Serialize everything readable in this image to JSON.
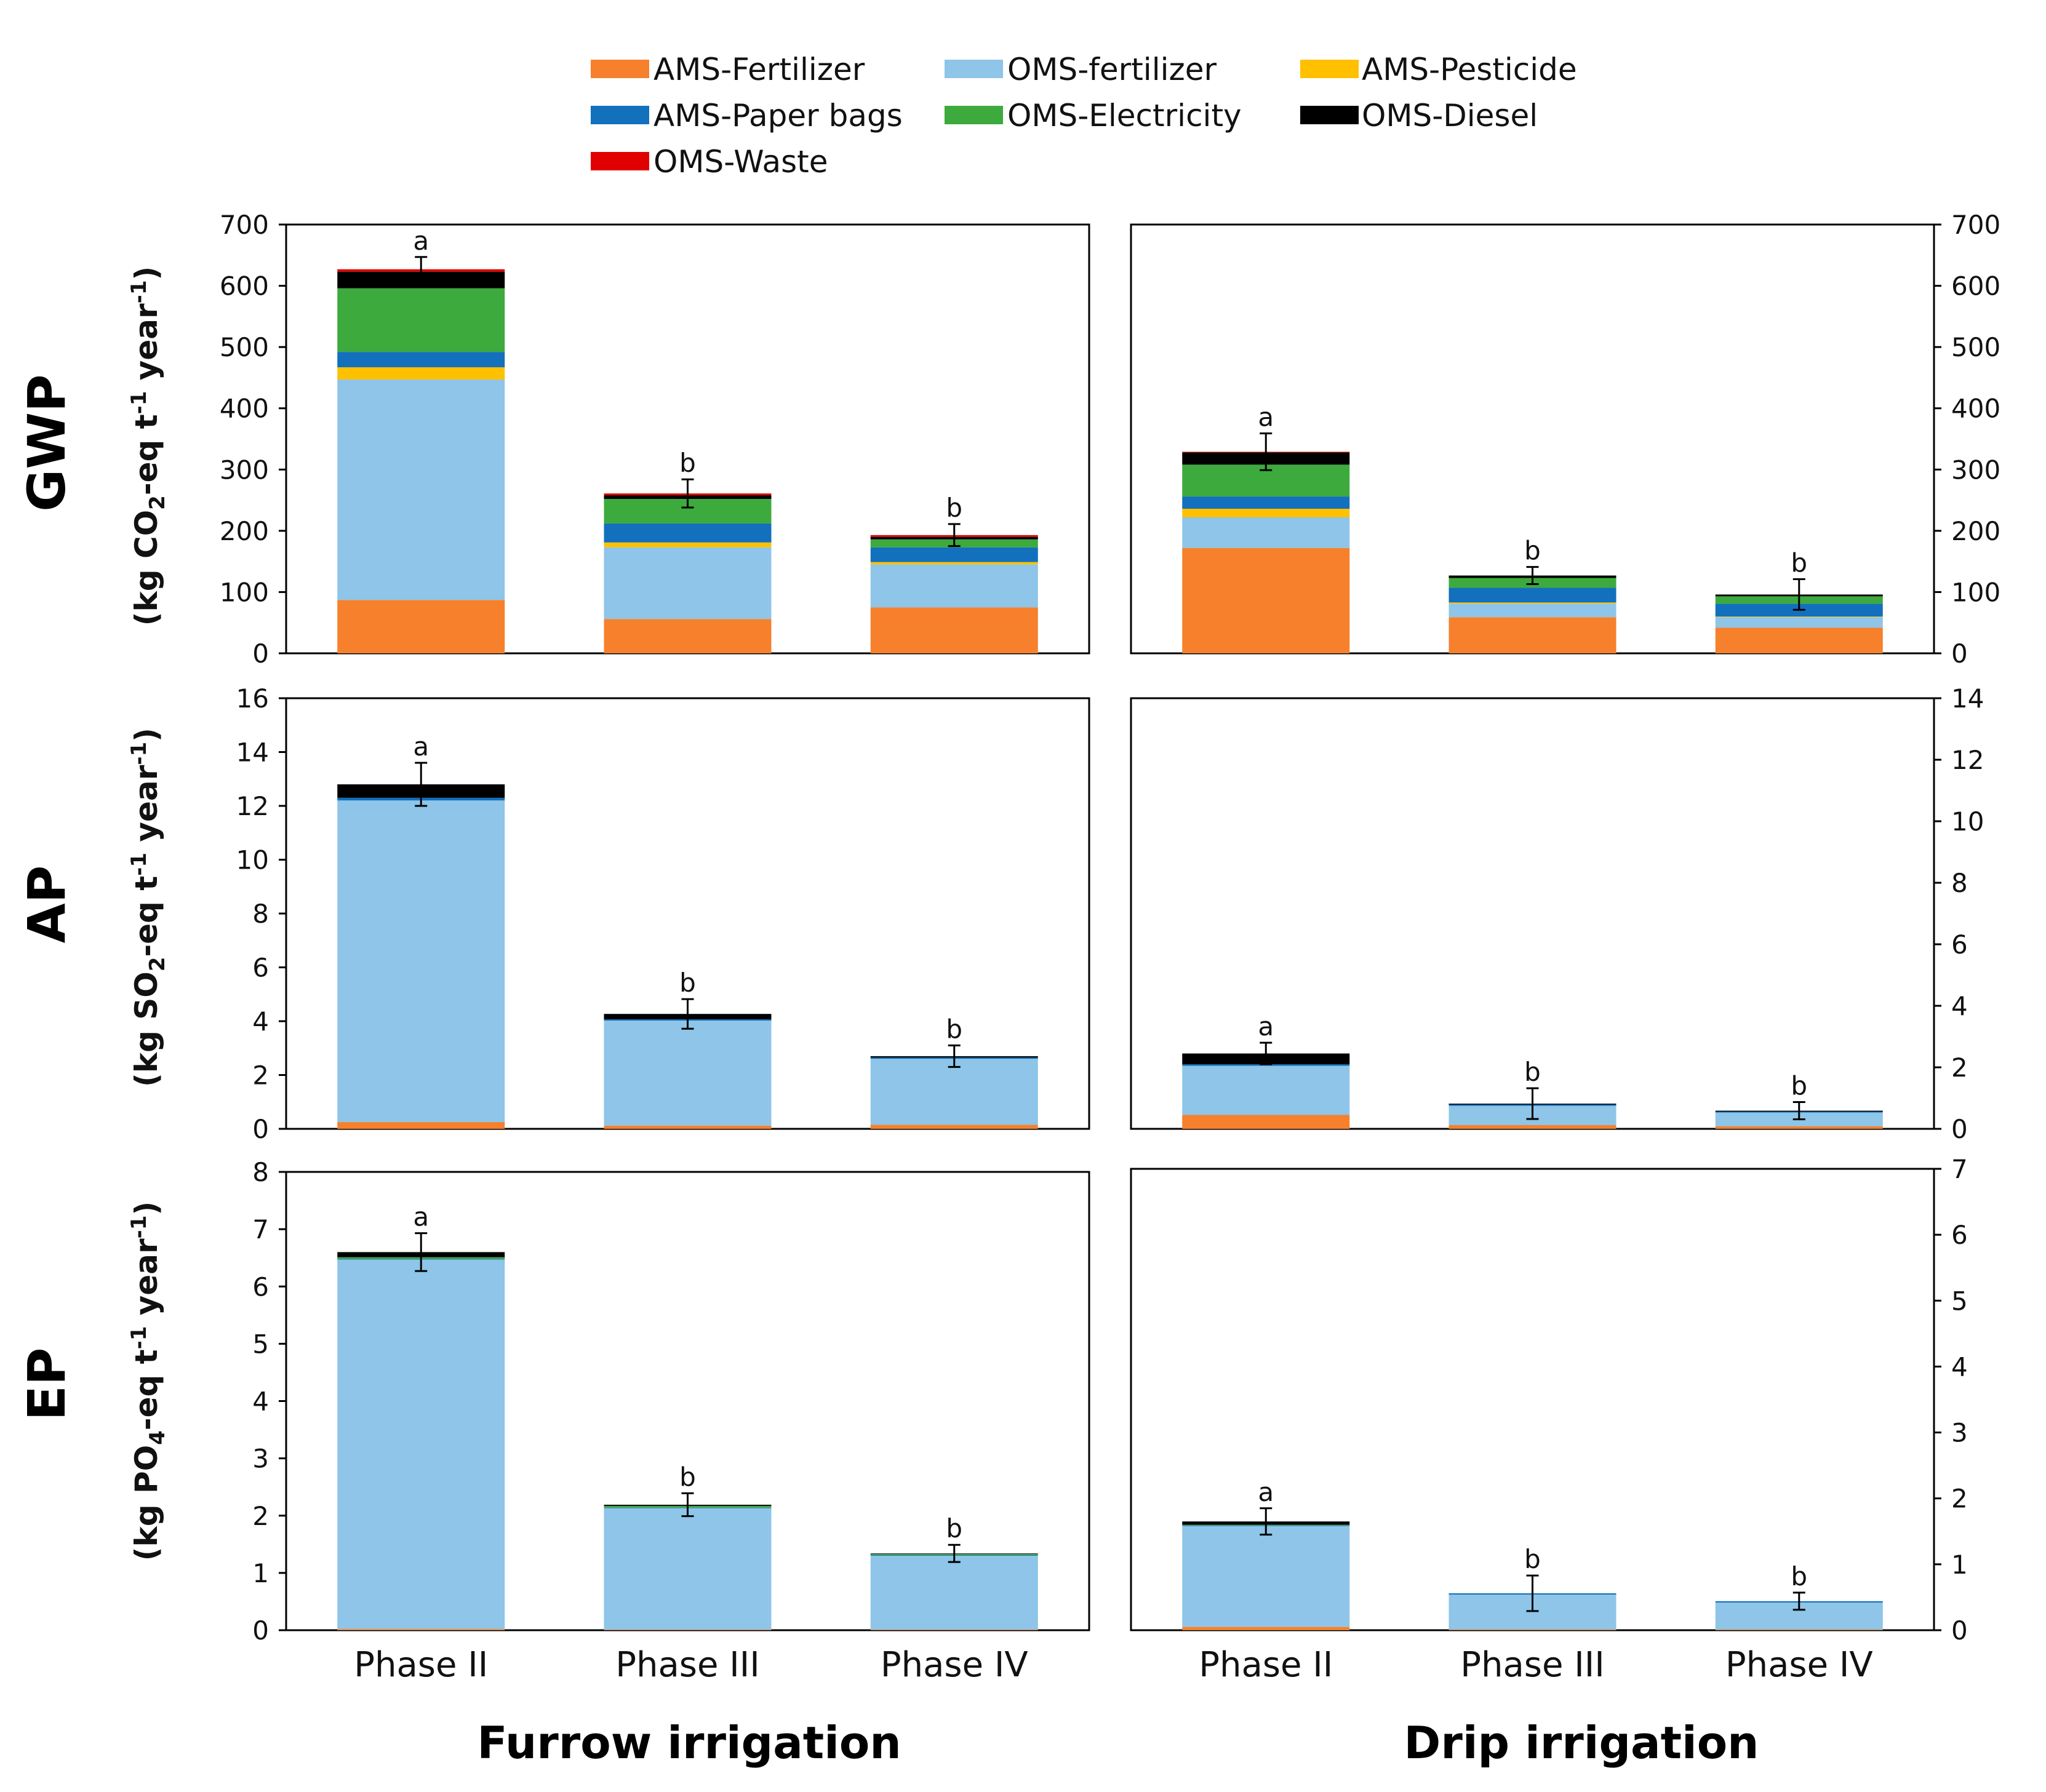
{
  "chart_data": {
    "type": "bar",
    "stacked": true,
    "categories": [
      "Phase II",
      "Phase III",
      "Phase IV"
    ],
    "legend": [
      {
        "name": "AMS-Fertilizer",
        "color": "#F6802B"
      },
      {
        "name": "OMS-fertilizer",
        "color": "#8EC5E8"
      },
      {
        "name": "AMS-Pesticide",
        "color": "#FFC000"
      },
      {
        "name": "AMS-Paper bags",
        "color": "#1270BD"
      },
      {
        "name": "OMS-Electricity",
        "color": "#3DAA3D"
      },
      {
        "name": "OMS-Diesel",
        "color": "#000000"
      },
      {
        "name": "OMS-Waste",
        "color": "#E00000"
      }
    ],
    "group_titles": {
      "left": "Furrow irrigation",
      "right": "Drip irrigation"
    },
    "panels": [
      {
        "row": "GWP",
        "group": "left",
        "ylabel": "(kg CO2-eq t-1 year-1)",
        "ylim": [
          0,
          700
        ],
        "yticks": [
          0,
          100,
          200,
          300,
          400,
          500,
          600,
          700
        ],
        "series": [
          {
            "name": "AMS-Fertilizer",
            "values": [
              87,
              56,
              75
            ]
          },
          {
            "name": "OMS-fertilizer",
            "values": [
              360,
              117,
              70
            ]
          },
          {
            "name": "AMS-Pesticide",
            "values": [
              20,
              8,
              4
            ]
          },
          {
            "name": "AMS-Paper bags",
            "values": [
              25,
              31,
              24
            ]
          },
          {
            "name": "OMS-Electricity",
            "values": [
              104,
              40,
              13
            ]
          },
          {
            "name": "OMS-Diesel",
            "values": [
              27,
              6,
              4
            ]
          },
          {
            "name": "OMS-Waste",
            "values": [
              4,
              3,
              3
            ]
          }
        ],
        "errors": [
          20,
          23,
          18
        ],
        "significance": [
          "a",
          "b",
          "b"
        ]
      },
      {
        "row": "GWP",
        "group": "right",
        "ylim": [
          0,
          700
        ],
        "yticks": [
          0,
          100,
          200,
          300,
          400,
          500,
          600,
          700
        ],
        "series": [
          {
            "name": "AMS-Fertilizer",
            "values": [
              172,
              59,
              42
            ]
          },
          {
            "name": "OMS-fertilizer",
            "values": [
              50,
              22,
              17
            ]
          },
          {
            "name": "AMS-Pesticide",
            "values": [
              14,
              2,
              1
            ]
          },
          {
            "name": "AMS-Paper bags",
            "values": [
              20,
              24,
              21
            ]
          },
          {
            "name": "OMS-Electricity",
            "values": [
              52,
              16,
              12
            ]
          },
          {
            "name": "OMS-Diesel",
            "values": [
              20,
              4,
              3
            ]
          },
          {
            "name": "OMS-Waste",
            "values": [
              1,
              0,
              0
            ]
          }
        ],
        "errors": [
          30,
          14,
          25
        ],
        "significance": [
          "a",
          "b",
          "b"
        ]
      },
      {
        "row": "AP",
        "group": "left",
        "ylabel": "(kg SO2-eq t-1 year-1)",
        "ylim": [
          0,
          16
        ],
        "yticks": [
          0,
          2,
          4,
          6,
          8,
          10,
          12,
          14,
          16
        ],
        "series": [
          {
            "name": "AMS-Fertilizer",
            "values": [
              0.25,
              0.12,
              0.15
            ]
          },
          {
            "name": "OMS-fertilizer",
            "values": [
              11.95,
              3.9,
              2.45
            ]
          },
          {
            "name": "AMS-Pesticide",
            "values": [
              0,
              0,
              0
            ]
          },
          {
            "name": "AMS-Paper bags",
            "values": [
              0.1,
              0.05,
              0.05
            ]
          },
          {
            "name": "OMS-Electricity",
            "values": [
              0,
              0,
              0
            ]
          },
          {
            "name": "OMS-Diesel",
            "values": [
              0.5,
              0.2,
              0.05
            ]
          },
          {
            "name": "OMS-Waste",
            "values": [
              0,
              0,
              0
            ]
          }
        ],
        "errors": [
          0.8,
          0.55,
          0.4
        ],
        "significance": [
          "a",
          "b",
          "b"
        ]
      },
      {
        "row": "AP",
        "group": "right",
        "ylim": [
          0,
          14
        ],
        "yticks": [
          0,
          2,
          4,
          6,
          8,
          10,
          12,
          14
        ],
        "series": [
          {
            "name": "AMS-Fertilizer",
            "values": [
              0.45,
              0.12,
              0.08
            ]
          },
          {
            "name": "OMS-fertilizer",
            "values": [
              1.6,
              0.63,
              0.45
            ]
          },
          {
            "name": "AMS-Pesticide",
            "values": [
              0,
              0,
              0
            ]
          },
          {
            "name": "AMS-Paper bags",
            "values": [
              0.05,
              0.04,
              0.03
            ]
          },
          {
            "name": "OMS-Electricity",
            "values": [
              0,
              0,
              0
            ]
          },
          {
            "name": "OMS-Diesel",
            "values": [
              0.35,
              0.03,
              0.03
            ]
          },
          {
            "name": "OMS-Waste",
            "values": [
              0,
              0,
              0
            ]
          }
        ],
        "errors": [
          0.35,
          0.5,
          0.28
        ],
        "significance": [
          "a",
          "b",
          "b"
        ]
      },
      {
        "row": "EP",
        "group": "left",
        "ylabel": "(kg PO4-eq t-1 year-1)",
        "ylim": [
          0,
          8
        ],
        "yticks": [
          0,
          1,
          2,
          3,
          4,
          5,
          6,
          7,
          8
        ],
        "series": [
          {
            "name": "AMS-Fertilizer",
            "values": [
              0.02,
              0.01,
              0.01
            ]
          },
          {
            "name": "OMS-fertilizer",
            "values": [
              6.45,
              2.12,
              1.29
            ]
          },
          {
            "name": "AMS-Pesticide",
            "values": [
              0,
              0,
              0
            ]
          },
          {
            "name": "AMS-Paper bags",
            "values": [
              0.01,
              0.01,
              0.01
            ]
          },
          {
            "name": "OMS-Electricity",
            "values": [
              0.03,
              0.03,
              0.02
            ]
          },
          {
            "name": "OMS-Diesel",
            "values": [
              0.09,
              0.02,
              0.01
            ]
          },
          {
            "name": "OMS-Waste",
            "values": [
              0,
              0,
              0
            ]
          }
        ],
        "errors": [
          0.33,
          0.2,
          0.15
        ],
        "significance": [
          "a",
          "b",
          "b"
        ]
      },
      {
        "row": "EP",
        "group": "right",
        "ylim": [
          0,
          7
        ],
        "yticks": [
          0,
          1,
          2,
          3,
          4,
          5,
          6,
          7
        ],
        "series": [
          {
            "name": "AMS-Fertilizer",
            "values": [
              0.05,
              0.01,
              0.01
            ]
          },
          {
            "name": "OMS-fertilizer",
            "values": [
              1.53,
              0.53,
              0.41
            ]
          },
          {
            "name": "AMS-Pesticide",
            "values": [
              0,
              0,
              0
            ]
          },
          {
            "name": "AMS-Paper bags",
            "values": [
              0.01,
              0.02,
              0.02
            ]
          },
          {
            "name": "OMS-Electricity",
            "values": [
              0.01,
              0,
              0
            ]
          },
          {
            "name": "OMS-Diesel",
            "values": [
              0.05,
              0,
              0
            ]
          },
          {
            "name": "OMS-Waste",
            "values": [
              0,
              0,
              0
            ]
          }
        ],
        "errors": [
          0.2,
          0.27,
          0.13
        ],
        "significance": [
          "a",
          "b",
          "b"
        ]
      }
    ]
  }
}
